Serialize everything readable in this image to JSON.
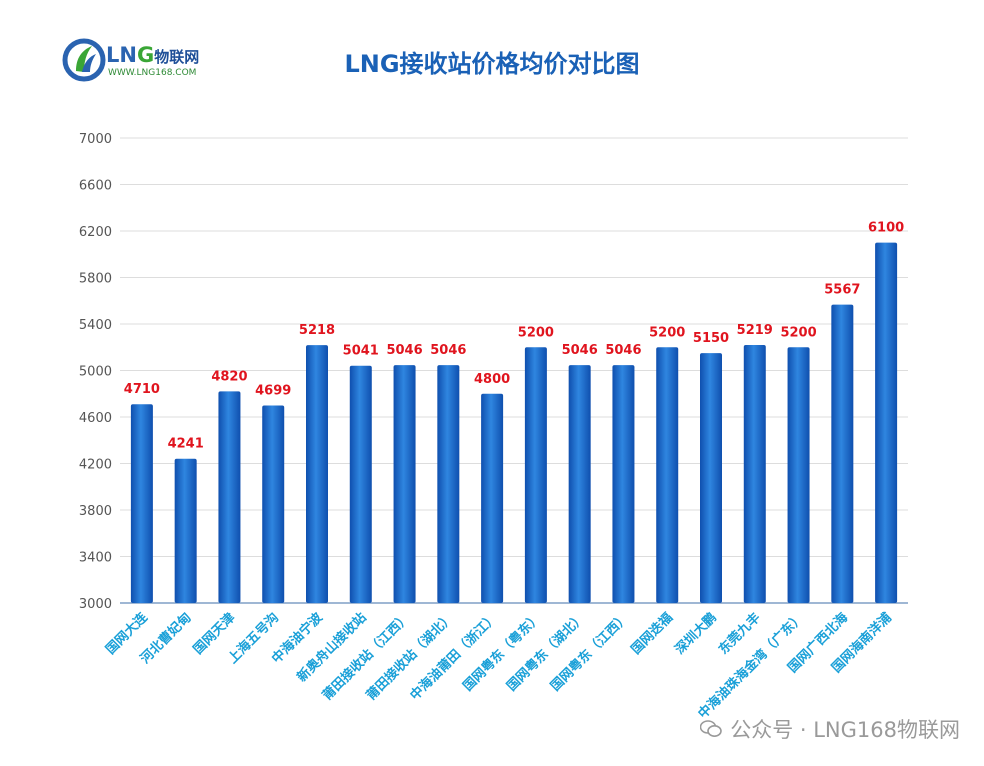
{
  "logo": {
    "brand_prefix": "LN",
    "brand_g": "G",
    "brand_cn": "物联网",
    "url": "WWW.LNG168.COM"
  },
  "watermark": {
    "text": "公众号 · LNG168物联网"
  },
  "colors": {
    "bar": "#1565c6",
    "bar_light": "#2f86e0",
    "label": "#e0141e",
    "axis_text": "#555555",
    "category_text": "#1aa0d8",
    "grid": "#dddddd",
    "title": "#1a61b6"
  },
  "chart_data": {
    "type": "bar",
    "title": "LNG接收站价格均价对比图",
    "categories": [
      "国网大连",
      "河北曹妃甸",
      "国网天津",
      "上海五号沟",
      "中海油宁波",
      "新奥舟山接收站",
      "莆田接收站（江西）",
      "莆田接收站（湖北）",
      "中海油莆田（浙江）",
      "国网粤东（粤东）",
      "国网粤东（湖北）",
      "国网粤东（江西）",
      "国网迭福",
      "深圳大鹏",
      "东莞九丰",
      "中海油珠海金湾（广东）",
      "国网广西北海",
      "国网海南洋浦"
    ],
    "values": [
      4710,
      4241,
      4820,
      4699,
      5218,
      5041,
      5046,
      5046,
      4800,
      5200,
      5046,
      5046,
      5200,
      5150,
      5219,
      5200,
      5567,
      6100
    ],
    "ylim": [
      3000,
      7000
    ],
    "yticks": [
      3000,
      3400,
      3800,
      4200,
      4600,
      5000,
      5400,
      5800,
      6200,
      6600,
      7000
    ],
    "grid": true,
    "legend": "none"
  }
}
